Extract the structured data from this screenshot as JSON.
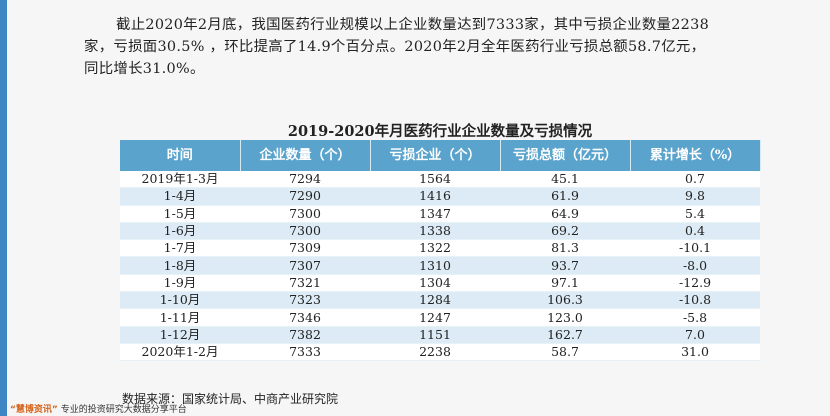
{
  "paragraph": {
    "line1": "截止2020年2月底，我国医药行业规模以上企业数量达到7333家，其中亏损企业数量2238",
    "line2": "家，亏损面30.5% ，环比提高了14.9个百分点。2020年2月全年医药行业亏损总额58.7亿元，",
    "line3": "同比增长31.0%。"
  },
  "table_title": "2019-2020年月医药行业企业数量及亏损情况",
  "table": {
    "headers": [
      "时间",
      "企业数量（个）",
      "亏损企业（个）",
      "亏损总额（亿元）",
      "累计增长（%）"
    ],
    "rows": [
      [
        "2019年1-3月",
        "7294",
        "1564",
        "45.1",
        "0.7"
      ],
      [
        "1-4月",
        "7290",
        "1416",
        "61.9",
        "9.8"
      ],
      [
        "1-5月",
        "7300",
        "1347",
        "64.9",
        "5.4"
      ],
      [
        "1-6月",
        "7300",
        "1338",
        "69.2",
        "0.4"
      ],
      [
        "1-7月",
        "7309",
        "1322",
        "81.3",
        "-10.1"
      ],
      [
        "1-8月",
        "7307",
        "1310",
        "93.7",
        "-8.0"
      ],
      [
        "1-9月",
        "7321",
        "1304",
        "97.1",
        "-12.9"
      ],
      [
        "1-10月",
        "7323",
        "1284",
        "106.3",
        "-10.8"
      ],
      [
        "1-11月",
        "7346",
        "1247",
        "123.0",
        "-5.8"
      ],
      [
        "1-12月",
        "7382",
        "1151",
        "162.7",
        "7.0"
      ],
      [
        "2020年1-2月",
        "7333",
        "2238",
        "58.7",
        "31.0"
      ]
    ]
  },
  "source": "数据来源：国家统计局、中商产业研究院",
  "footer": {
    "brand": "“慧博资讯”",
    "text": "专业的投资研究大数据分享平台"
  },
  "colors": {
    "header_bg": "#5aa3cc",
    "stripe": "#dcebf5",
    "left_bar": "#3f86c4"
  }
}
